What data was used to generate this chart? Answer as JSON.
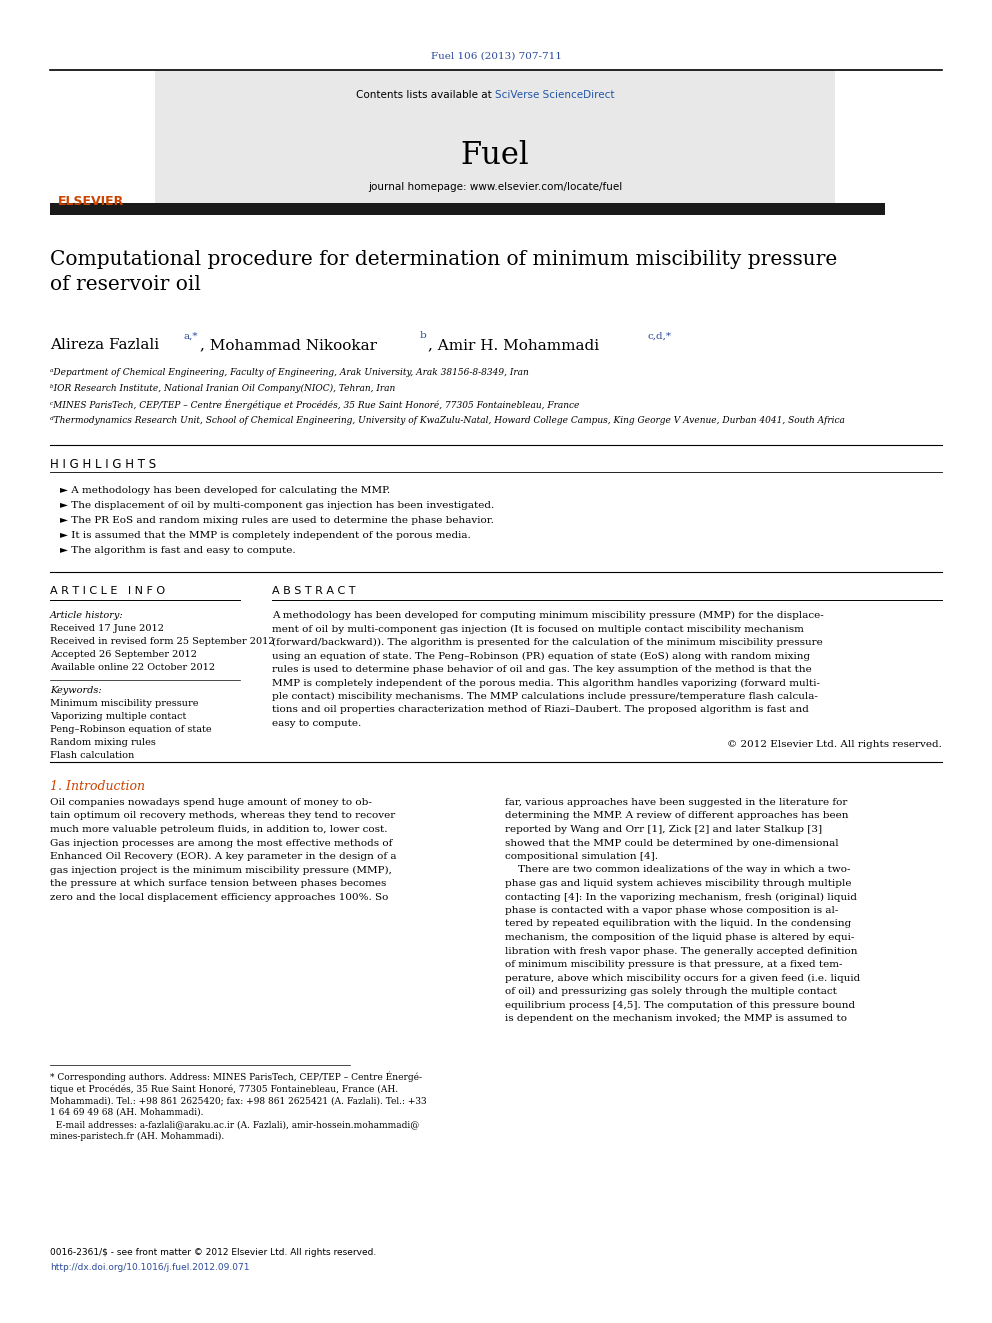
{
  "journal_ref": "Fuel 106 (2013) 707-711",
  "journal_ref_color": "#2b4b9b",
  "header_text1": "Contents lists available at ",
  "header_sciverse": "SciVerse ScienceDirect",
  "header_journal": "Fuel",
  "header_homepage": "journal homepage: www.elsevier.com/locate/fuel",
  "dark_bar_color": "#1a1a1a",
  "orange_color": "#cc4400",
  "grey_bg": "#e8e8e8",
  "title": "Computational procedure for determination of minimum miscibility pressure\nof reservoir oil",
  "affil_a": "ᵃDepartment of Chemical Engineering, Faculty of Engineering, Arak University, Arak 38156-8-8349, Iran",
  "affil_b": "ᵇIOR Research Institute, National Iranian Oil Company(NIOC), Tehran, Iran",
  "affil_c": "ᶜMINES ParisTech, CEP/TEP – Centre Énergétique et Procédés, 35 Rue Saint Honoré, 77305 Fontainebleau, France",
  "affil_d": "ᵈThermodynamics Research Unit, School of Chemical Engineering, University of KwaZulu-Natal, Howard College Campus, King George V Avenue, Durban 4041, South Africa",
  "highlights_title": "H I G H L I G H T S",
  "highlights": [
    "► A methodology has been developed for calculating the MMP.",
    "► The displacement of oil by multi-component gas injection has been investigated.",
    "► The PR EoS and random mixing rules are used to determine the phase behavior.",
    "► It is assumed that the MMP is completely independent of the porous media.",
    "► The algorithm is fast and easy to compute."
  ],
  "article_info_title": "A R T I C L E   I N F O",
  "abstract_title": "A B S T R A C T",
  "article_history_label": "Article history:",
  "received": "Received 17 June 2012",
  "received_revised": "Received in revised form 25 September 2012",
  "accepted": "Accepted 26 September 2012",
  "available": "Available online 22 October 2012",
  "keywords_label": "Keywords:",
  "keywords": [
    "Minimum miscibility pressure",
    "Vaporizing multiple contact",
    "Peng–Robinson equation of state",
    "Random mixing rules",
    "Flash calculation"
  ],
  "abstract_lines": [
    "A methodology has been developed for computing minimum miscibility pressure (MMP) for the displace-",
    "ment of oil by multi-component gas injection (It is focused on multiple contact miscibility mechanism",
    "(forward/backward)). The algorithm is presented for the calculation of the minimum miscibility pressure",
    "using an equation of state. The Peng–Robinson (PR) equation of state (EoS) along with random mixing",
    "rules is used to determine phase behavior of oil and gas. The key assumption of the method is that the",
    "MMP is completely independent of the porous media. This algorithm handles vaporizing (forward multi-",
    "ple contact) miscibility mechanisms. The MMP calculations include pressure/temperature flash calcula-",
    "tions and oil properties characterization method of Riazi–Daubert. The proposed algorithm is fast and",
    "easy to compute."
  ],
  "copyright": "© 2012 Elsevier Ltd. All rights reserved.",
  "intro_title": "1. Introduction",
  "intro_lines1": [
    "Oil companies nowadays spend huge amount of money to ob-",
    "tain optimum oil recovery methods, whereas they tend to recover",
    "much more valuable petroleum fluids, in addition to, lower cost.",
    "Gas injection processes are among the most effective methods of",
    "Enhanced Oil Recovery (EOR). A key parameter in the design of a",
    "gas injection project is the minimum miscibility pressure (MMP),",
    "the pressure at which surface tension between phases becomes",
    "zero and the local displacement efficiency approaches 100%. So"
  ],
  "intro_lines2": [
    "far, various approaches have been suggested in the literature for",
    "determining the MMP. A review of different approaches has been",
    "reported by Wang and Orr [1], Zick [2] and later Stalkup [3]",
    "showed that the MMP could be determined by one-dimensional",
    "compositional simulation [4].",
    "    There are two common idealizations of the way in which a two-",
    "phase gas and liquid system achieves miscibility through multiple",
    "contacting [4]: In the vaporizing mechanism, fresh (original) liquid",
    "phase is contacted with a vapor phase whose composition is al-",
    "tered by repeated equilibration with the liquid. In the condensing",
    "mechanism, the composition of the liquid phase is altered by equi-",
    "libration with fresh vapor phase. The generally accepted definition",
    "of minimum miscibility pressure is that pressure, at a fixed tem-",
    "perature, above which miscibility occurs for a given feed (i.e. liquid",
    "of oil) and pressurizing gas solely through the multiple contact",
    "equilibrium process [4,5]. The computation of this pressure bound",
    "is dependent on the mechanism invoked; the MMP is assumed to"
  ],
  "footnote_lines": [
    "* Corresponding authors. Address: MINES ParisTech, CEP/TEP – Centre Énergé-",
    "tique et Procédés, 35 Rue Saint Honoré, 77305 Fontainebleau, France (AH.",
    "Mohammadi). Tel.: +98 861 2625420; fax: +98 861 2625421 (A. Fazlali). Tel.: +33",
    "1 64 69 49 68 (AH. Mohammadi).",
    "  E-mail addresses: a-fazlali@araku.ac.ir (A. Fazlali), amir-hossein.mohammadi@",
    "mines-paristech.fr (AH. Mohammadi)."
  ],
  "issn": "0016-2361/$ - see front matter © 2012 Elsevier Ltd. All rights reserved.",
  "doi": "http://dx.doi.org/10.1016/j.fuel.2012.09.071"
}
